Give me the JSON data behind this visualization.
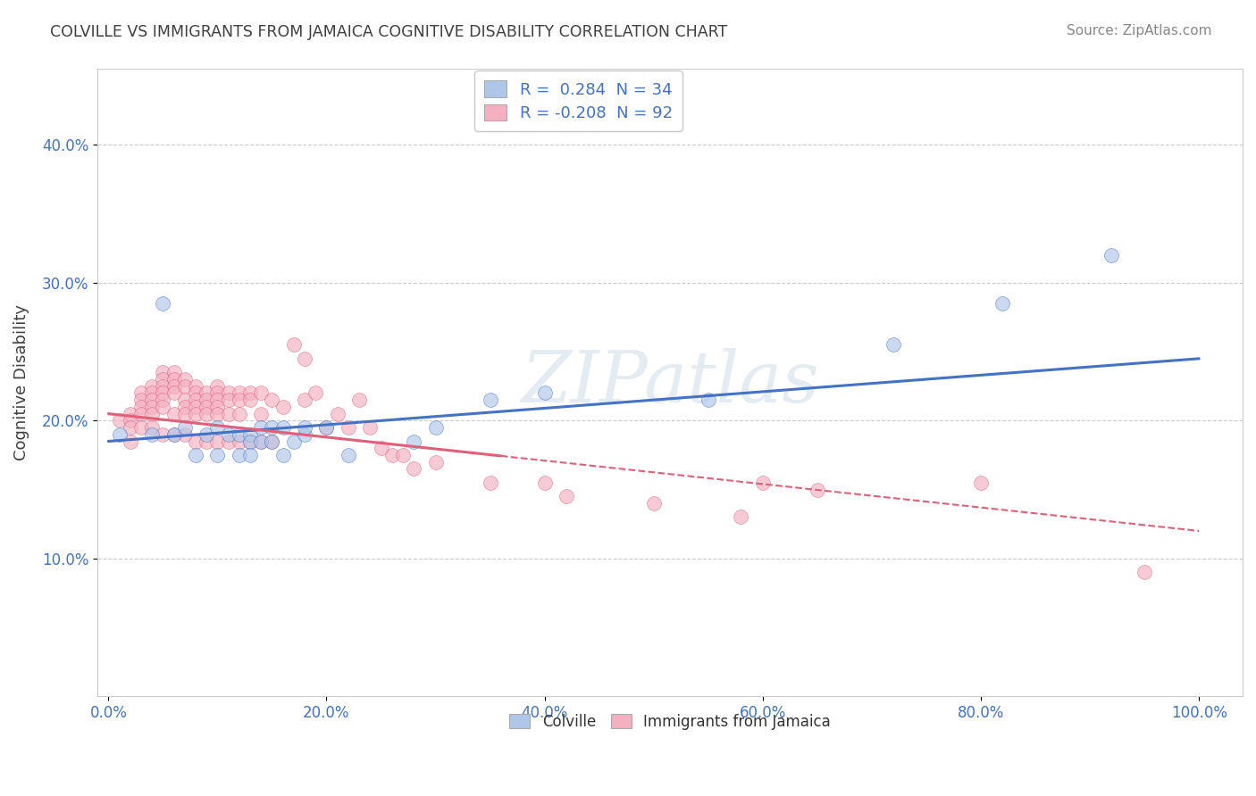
{
  "title": "COLVILLE VS IMMIGRANTS FROM JAMAICA COGNITIVE DISABILITY CORRELATION CHART",
  "source": "Source: ZipAtlas.com",
  "ylabel": "Cognitive Disability",
  "xlabel": "",
  "legend_label1": "Colville",
  "legend_label2": "Immigrants from Jamaica",
  "r1": 0.284,
  "n1": 34,
  "r2": -0.208,
  "n2": 92,
  "color1": "#aec6e8",
  "color2": "#f4afc0",
  "line_color1": "#4472c4",
  "line_color2": "#e0607a",
  "watermark": "ZIPatlas",
  "xlim": [
    0.0,
    1.0
  ],
  "ylim": [
    0.0,
    0.45
  ],
  "xticks": [
    0.0,
    0.2,
    0.4,
    0.6,
    0.8,
    1.0
  ],
  "yticks": [
    0.1,
    0.2,
    0.3,
    0.4
  ],
  "xticklabels": [
    "0.0%",
    "20.0%",
    "40.0%",
    "60.0%",
    "80.0%",
    "100.0%"
  ],
  "yticklabels": [
    "10.0%",
    "20.0%",
    "30.0%",
    "40.0%"
  ],
  "colville_x": [
    0.01,
    0.04,
    0.05,
    0.06,
    0.07,
    0.08,
    0.09,
    0.1,
    0.1,
    0.11,
    0.12,
    0.12,
    0.13,
    0.13,
    0.13,
    0.14,
    0.14,
    0.15,
    0.15,
    0.16,
    0.16,
    0.17,
    0.18,
    0.18,
    0.2,
    0.22,
    0.28,
    0.3,
    0.35,
    0.4,
    0.55,
    0.72,
    0.82,
    0.92
  ],
  "colville_y": [
    0.19,
    0.19,
    0.285,
    0.19,
    0.195,
    0.175,
    0.19,
    0.195,
    0.175,
    0.19,
    0.19,
    0.175,
    0.19,
    0.185,
    0.175,
    0.195,
    0.185,
    0.195,
    0.185,
    0.195,
    0.175,
    0.185,
    0.19,
    0.195,
    0.195,
    0.175,
    0.185,
    0.195,
    0.215,
    0.22,
    0.215,
    0.255,
    0.285,
    0.32
  ],
  "jamaica_x": [
    0.01,
    0.02,
    0.02,
    0.02,
    0.02,
    0.03,
    0.03,
    0.03,
    0.03,
    0.03,
    0.04,
    0.04,
    0.04,
    0.04,
    0.04,
    0.04,
    0.05,
    0.05,
    0.05,
    0.05,
    0.05,
    0.05,
    0.05,
    0.06,
    0.06,
    0.06,
    0.06,
    0.06,
    0.06,
    0.07,
    0.07,
    0.07,
    0.07,
    0.07,
    0.07,
    0.08,
    0.08,
    0.08,
    0.08,
    0.08,
    0.08,
    0.09,
    0.09,
    0.09,
    0.09,
    0.09,
    0.1,
    0.1,
    0.1,
    0.1,
    0.1,
    0.1,
    0.11,
    0.11,
    0.11,
    0.11,
    0.12,
    0.12,
    0.12,
    0.12,
    0.13,
    0.13,
    0.13,
    0.14,
    0.14,
    0.14,
    0.15,
    0.15,
    0.16,
    0.17,
    0.18,
    0.18,
    0.19,
    0.2,
    0.21,
    0.22,
    0.23,
    0.24,
    0.25,
    0.26,
    0.27,
    0.28,
    0.3,
    0.35,
    0.4,
    0.42,
    0.5,
    0.58,
    0.6,
    0.65,
    0.8,
    0.95
  ],
  "jamaica_y": [
    0.2,
    0.205,
    0.2,
    0.195,
    0.185,
    0.22,
    0.215,
    0.21,
    0.205,
    0.195,
    0.225,
    0.22,
    0.215,
    0.21,
    0.205,
    0.195,
    0.235,
    0.23,
    0.225,
    0.22,
    0.215,
    0.21,
    0.19,
    0.235,
    0.23,
    0.225,
    0.22,
    0.205,
    0.19,
    0.23,
    0.225,
    0.215,
    0.21,
    0.205,
    0.19,
    0.225,
    0.22,
    0.215,
    0.21,
    0.205,
    0.185,
    0.22,
    0.215,
    0.21,
    0.205,
    0.185,
    0.225,
    0.22,
    0.215,
    0.21,
    0.205,
    0.185,
    0.22,
    0.215,
    0.205,
    0.185,
    0.22,
    0.215,
    0.205,
    0.185,
    0.22,
    0.215,
    0.185,
    0.22,
    0.205,
    0.185,
    0.215,
    0.185,
    0.21,
    0.255,
    0.245,
    0.215,
    0.22,
    0.195,
    0.205,
    0.195,
    0.215,
    0.195,
    0.18,
    0.175,
    0.175,
    0.165,
    0.17,
    0.155,
    0.155,
    0.145,
    0.14,
    0.13,
    0.155,
    0.15,
    0.155,
    0.09
  ],
  "background_color": "#ffffff",
  "grid_color": "#cccccc",
  "title_color": "#404040",
  "tick_color": "#4472c4",
  "axis_color": "#cccccc",
  "trend1_x0": 0.0,
  "trend1_y0": 0.185,
  "trend1_x1": 1.0,
  "trend1_y1": 0.245,
  "trend2_x0": 0.0,
  "trend2_y0": 0.205,
  "trend2_x1": 1.0,
  "trend2_y1": 0.12
}
